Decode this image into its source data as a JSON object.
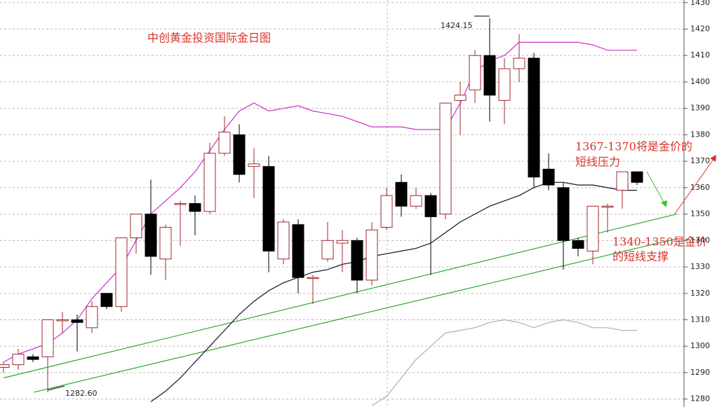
{
  "chart_data": {
    "type": "candlestick",
    "title": "中创黄金投资国际金日图",
    "ylim": [
      1277,
      1431
    ],
    "yticks": [
      1280,
      1290,
      1300,
      1310,
      1320,
      1330,
      1340,
      1350,
      1360,
      1370,
      1380,
      1390,
      1400,
      1410,
      1420,
      1430
    ],
    "grid": true,
    "up_color": "#a0282d",
    "down_color": "#000000",
    "open": [
      1292,
      1293,
      1296,
      1296,
      1310,
      1310,
      1307,
      1320,
      1315,
      1341,
      1350,
      1333,
      1354,
      1354,
      1351,
      1373,
      1380,
      1368,
      1368,
      1333,
      1346,
      1326,
      1333,
      1339,
      1340,
      1325,
      1345,
      1362,
      1353,
      1357,
      1350,
      1393,
      1397,
      1410,
      1393,
      1405,
      1409,
      1367,
      1360,
      1340,
      1336,
      1353,
      1359,
      1366
    ],
    "close": [
      1293,
      1297,
      1295,
      1310,
      1310,
      1309,
      1315,
      1315,
      1341,
      1350,
      1334,
      1345,
      1354,
      1351,
      1373,
      1381,
      1365,
      1369,
      1336,
      1347,
      1326,
      1326,
      1340,
      1340,
      1325,
      1344,
      1357,
      1353,
      1357,
      1349,
      1392,
      1395,
      1410,
      1395,
      1405,
      1409,
      1364,
      1361,
      1340,
      1337,
      1353,
      1353,
      1366,
      1362
    ],
    "high": [
      1294,
      1299,
      1297,
      1310,
      1313,
      1312,
      1317,
      1320,
      1341,
      1350,
      1363,
      1346,
      1355,
      1357,
      1377,
      1387,
      1384,
      1375,
      1372,
      1348,
      1348,
      1327,
      1347,
      1344,
      1341,
      1347,
      1360,
      1365,
      1360,
      1358,
      1392,
      1400,
      1412,
      1424.15,
      1409,
      1418,
      1411,
      1373,
      1362,
      1341,
      1353,
      1354,
      1366,
      1366
    ],
    "low": [
      1290,
      1291,
      1294,
      1282.6,
      1305,
      1298,
      1305,
      1314,
      1313,
      1335,
      1327,
      1325,
      1338,
      1342,
      1350,
      1372,
      1362,
      1356,
      1328,
      1331,
      1320,
      1316,
      1332,
      1328,
      1320,
      1323,
      1344,
      1349,
      1352,
      1327,
      1348,
      1380,
      1392,
      1385,
      1384,
      1400,
      1360,
      1359,
      1329,
      1334,
      1331,
      1343,
      1352,
      1361
    ],
    "series": [
      {
        "color": "#cc33cc",
        "values": [
          1294,
          1297,
          1299,
          1301,
          1305,
          1310,
          1318,
          1324,
          1330,
          1340,
          1350,
          1355,
          1360,
          1366,
          1374,
          1382,
          1389,
          1392,
          1389,
          1390,
          1391,
          1389,
          1388,
          1387,
          1385,
          1383,
          1383,
          1383,
          1382,
          1382,
          1382,
          1392,
          1404,
          1408,
          1410,
          1415,
          1415,
          1415,
          1415,
          1415,
          1414,
          1412,
          1412,
          1412
        ]
      },
      {
        "color": "#111133",
        "values": [
          null,
          null,
          null,
          null,
          null,
          null,
          null,
          null,
          null,
          null,
          1279,
          1283,
          1288,
          1294,
          1300,
          1306,
          1312,
          1317,
          1321,
          1324,
          1326,
          1328,
          1329,
          1331,
          1332,
          1334,
          1335,
          1336,
          1337,
          1339,
          1343,
          1347,
          1350,
          1353,
          1355,
          1357,
          1360,
          1362,
          1362,
          1361,
          1361,
          1360,
          1359,
          1359
        ]
      },
      {
        "color": "#b0b0b0",
        "values": [
          null,
          null,
          null,
          null,
          null,
          null,
          null,
          null,
          null,
          null,
          null,
          null,
          null,
          null,
          null,
          null,
          null,
          null,
          null,
          null,
          null,
          null,
          null,
          null,
          null,
          1277.5,
          1281,
          1288,
          1295,
          1300,
          1305,
          1306,
          1307,
          1309,
          1310,
          1309,
          1307,
          1309,
          1310,
          1309,
          1307,
          1307,
          1306,
          1306
        ]
      }
    ],
    "trend_lines": [
      {
        "color": "#2ea82e",
        "x": [
          0,
          45.7
        ],
        "values": [
          1288,
          1350
        ]
      },
      {
        "color": "#2ea82e",
        "x": [
          2.05,
          45.7
        ],
        "values": [
          1282.6,
          1340.7
        ]
      }
    ],
    "high_label": "1424.15",
    "low_label": "1282.60",
    "annotations": [
      "1367-1370将是金价的",
      "短线压力",
      "1340-1350是金价",
      "的短线支撑"
    ]
  }
}
